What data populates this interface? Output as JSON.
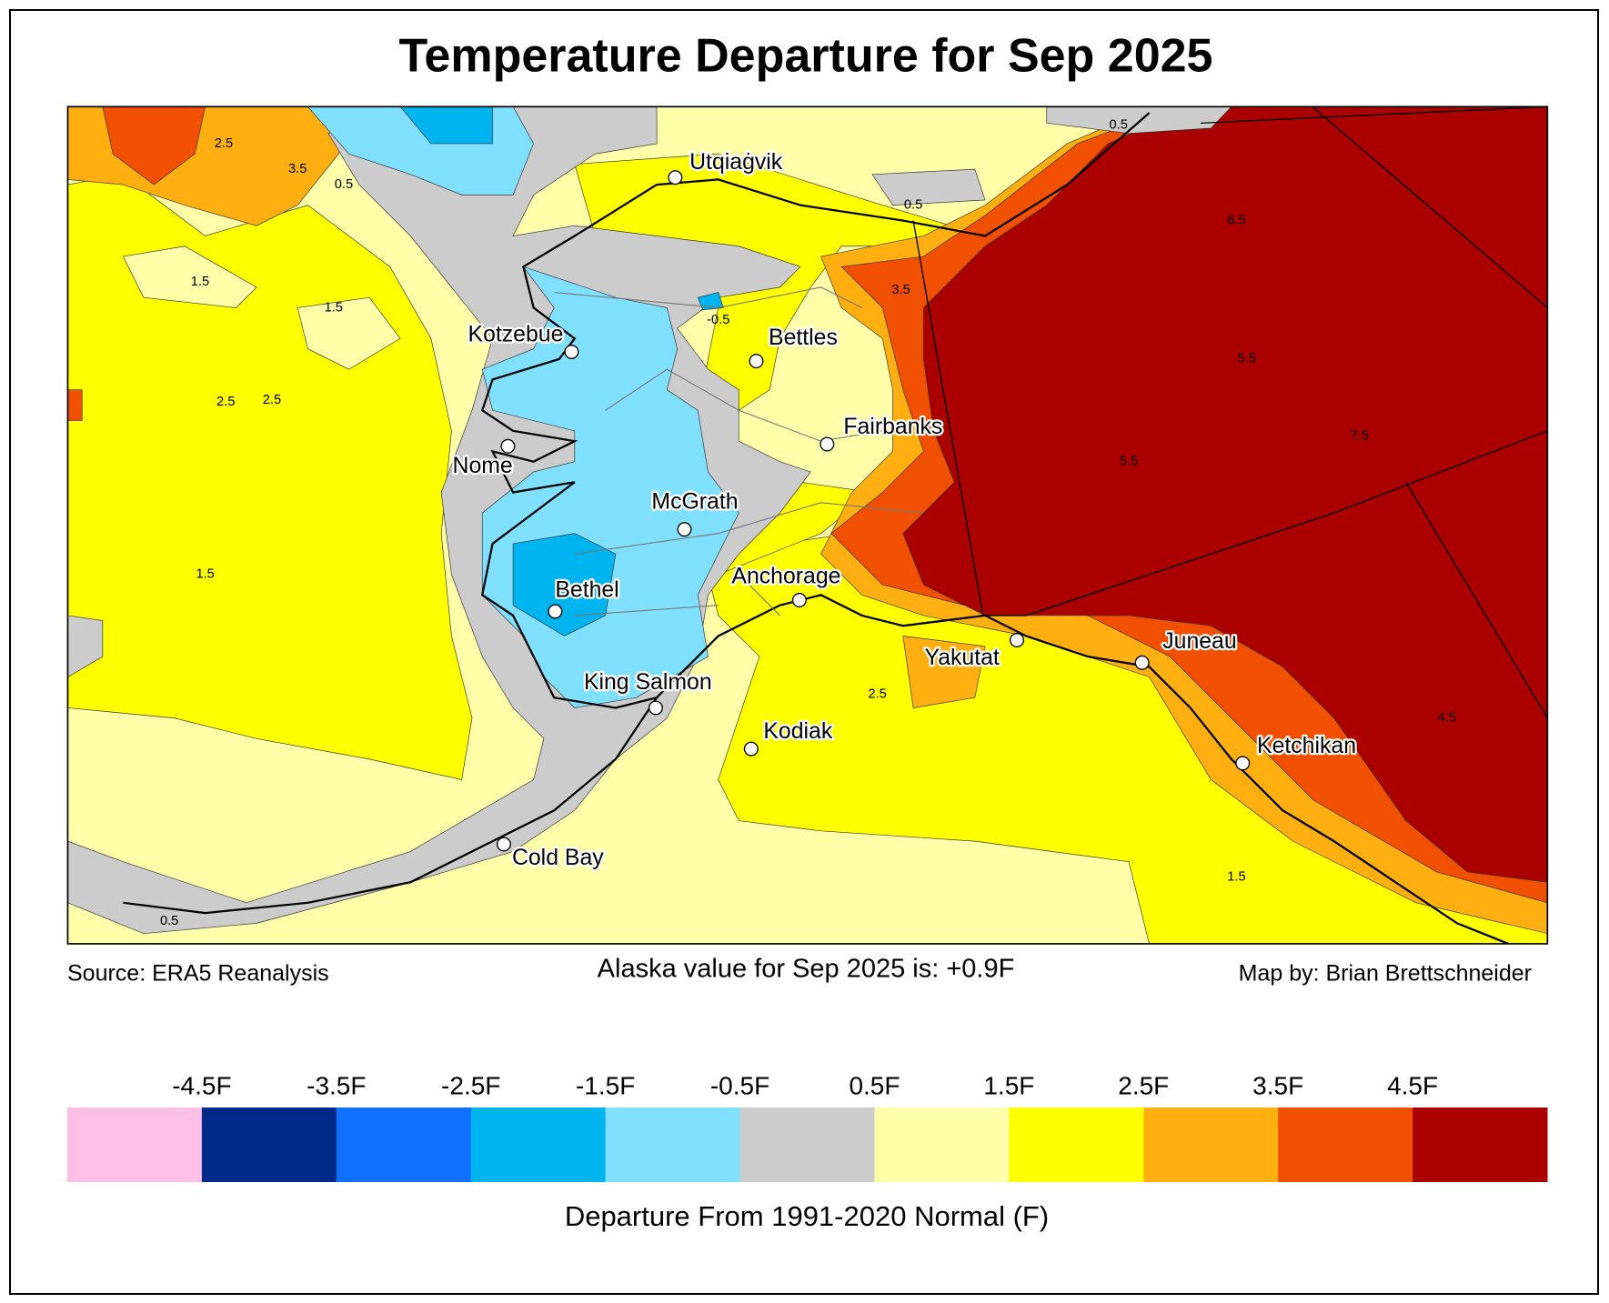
{
  "header": {
    "title": "Temperature Departure for Sep 2025"
  },
  "map": {
    "cities": [
      "Utqiaġvik",
      "Kotzebue",
      "Bettles",
      "Fairbanks",
      "Nome",
      "McGrath",
      "Bethel",
      "Anchorage",
      "Yakutat",
      "Juneau",
      "King Salmon",
      "Kodiak",
      "Ketchikan",
      "Cold Bay"
    ],
    "contour_labels": [
      "2.5",
      "3.5",
      "0.5",
      "1.5",
      "1.5",
      "2.5",
      "0.5",
      "0.5",
      "3.5",
      "-0.5",
      "1.5",
      "2.5",
      "5.5",
      "6.5",
      "7.5",
      "4.5",
      "1.5",
      "0.5",
      "2.5",
      "5.5"
    ]
  },
  "footer": {
    "source": "Source: ERA5 Reanalysis",
    "statement": "Alaska value for Sep 2025 is: +0.9F",
    "credit": "Map by: Brian Brettschneider"
  },
  "colorbar": {
    "ticks": [
      "-4.5F",
      "-3.5F",
      "-2.5F",
      "-1.5F",
      "-0.5F",
      "0.5F",
      "1.5F",
      "2.5F",
      "3.5F",
      "4.5F"
    ],
    "colors": [
      "#ffc0e8",
      "#002a8a",
      "#1070ff",
      "#00b4f0",
      "#80e0ff",
      "#cccccc",
      "#ffffaa",
      "#ffff00",
      "#ffb010",
      "#f05000",
      "#aa0000"
    ],
    "label": "Departure From 1991-2020 Normal (F)"
  }
}
